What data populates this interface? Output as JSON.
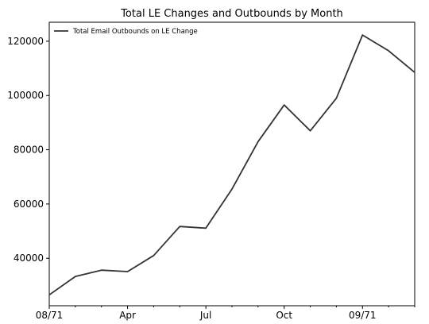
{
  "chart_data": {
    "type": "line",
    "title": "Total LE Changes and Outbounds by Month",
    "xlabel": "",
    "ylabel": "",
    "x": [
      0,
      1,
      2,
      3,
      4,
      5,
      6,
      7,
      8,
      9,
      10,
      11,
      12,
      13,
      14
    ],
    "x_tick_positions": [
      0,
      3,
      6,
      9,
      12
    ],
    "x_tick_labels": [
      "08/71",
      "Apr",
      "Jul",
      "Oct",
      "09/71"
    ],
    "x_minor_tick_positions": [
      1,
      2,
      4,
      5,
      7,
      8,
      10,
      11,
      13,
      14
    ],
    "xlim": [
      0,
      14
    ],
    "y_ticks": [
      40000,
      60000,
      80000,
      100000,
      120000
    ],
    "y_tick_labels": [
      "40000",
      "60000",
      "80000",
      "100000",
      "120000"
    ],
    "ylim": [
      22500,
      127000
    ],
    "grid": false,
    "legend_position": "top-left",
    "series": [
      {
        "name": "Total Email Outbounds on LE Change",
        "color": "#333333",
        "values": [
          26500,
          33300,
          35600,
          35100,
          41000,
          51700,
          51100,
          65500,
          83000,
          96500,
          87000,
          99000,
          122300,
          116500,
          108500
        ]
      }
    ]
  }
}
